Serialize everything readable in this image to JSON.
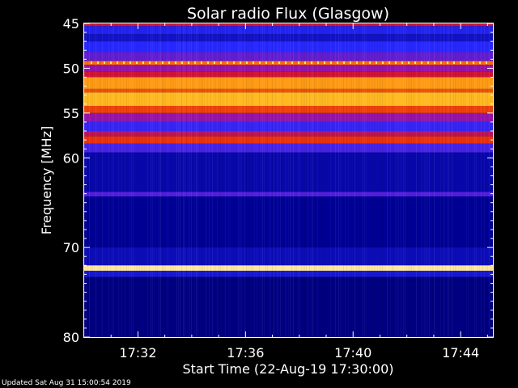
{
  "chart_data": {
    "type": "heatmap",
    "title": "Solar radio Flux (Glasgow)",
    "xlabel": "Start Time (22-Aug-19 17:30:00)",
    "ylabel": "Frequency [MHz]",
    "xlim_minutes": [
      0,
      15.2
    ],
    "ylim": [
      45,
      80
    ],
    "x_ticks": [
      "17:32",
      "17:36",
      "17:40",
      "17:44"
    ],
    "x_tick_values_minutes": [
      2,
      6,
      10,
      14
    ],
    "y_ticks": [
      45,
      50,
      55,
      60,
      70,
      80
    ],
    "colormap": "black-blue-red-yellow-white",
    "bands": [
      {
        "f0": 45.0,
        "f1": 45.3,
        "level": 0.55
      },
      {
        "f0": 45.3,
        "f1": 46.2,
        "level": 0.28
      },
      {
        "f0": 46.2,
        "f1": 47.0,
        "level": 0.22
      },
      {
        "f0": 47.0,
        "f1": 48.2,
        "level": 0.3
      },
      {
        "f0": 48.2,
        "f1": 49.2,
        "level": 0.38
      },
      {
        "f0": 49.2,
        "f1": 49.6,
        "level": 0.7
      },
      {
        "f0": 49.6,
        "f1": 50.4,
        "level": 0.45
      },
      {
        "f0": 50.4,
        "f1": 51.0,
        "level": 0.55
      },
      {
        "f0": 51.0,
        "f1": 52.3,
        "level": 0.76
      },
      {
        "f0": 52.3,
        "f1": 52.7,
        "level": 0.66
      },
      {
        "f0": 52.7,
        "f1": 54.2,
        "level": 0.8
      },
      {
        "f0": 54.2,
        "f1": 55.0,
        "level": 0.64
      },
      {
        "f0": 55.0,
        "f1": 56.0,
        "level": 0.45
      },
      {
        "f0": 56.0,
        "f1": 57.0,
        "level": 0.32
      },
      {
        "f0": 57.0,
        "f1": 57.6,
        "level": 0.52
      },
      {
        "f0": 57.6,
        "f1": 58.4,
        "level": 0.62
      },
      {
        "f0": 58.4,
        "f1": 59.4,
        "level": 0.34
      },
      {
        "f0": 59.4,
        "f1": 63.8,
        "level": 0.18
      },
      {
        "f0": 63.8,
        "f1": 64.3,
        "level": 0.36
      },
      {
        "f0": 64.3,
        "f1": 70.0,
        "level": 0.15
      },
      {
        "f0": 70.0,
        "f1": 72.0,
        "level": 0.2
      },
      {
        "f0": 72.0,
        "f1": 72.6,
        "level": 0.92
      },
      {
        "f0": 72.6,
        "f1": 73.3,
        "level": 0.24
      },
      {
        "f0": 73.3,
        "f1": 80.0,
        "level": 0.13
      }
    ]
  },
  "footer": "Updated Sat Aug 31 15:00:54 2019"
}
